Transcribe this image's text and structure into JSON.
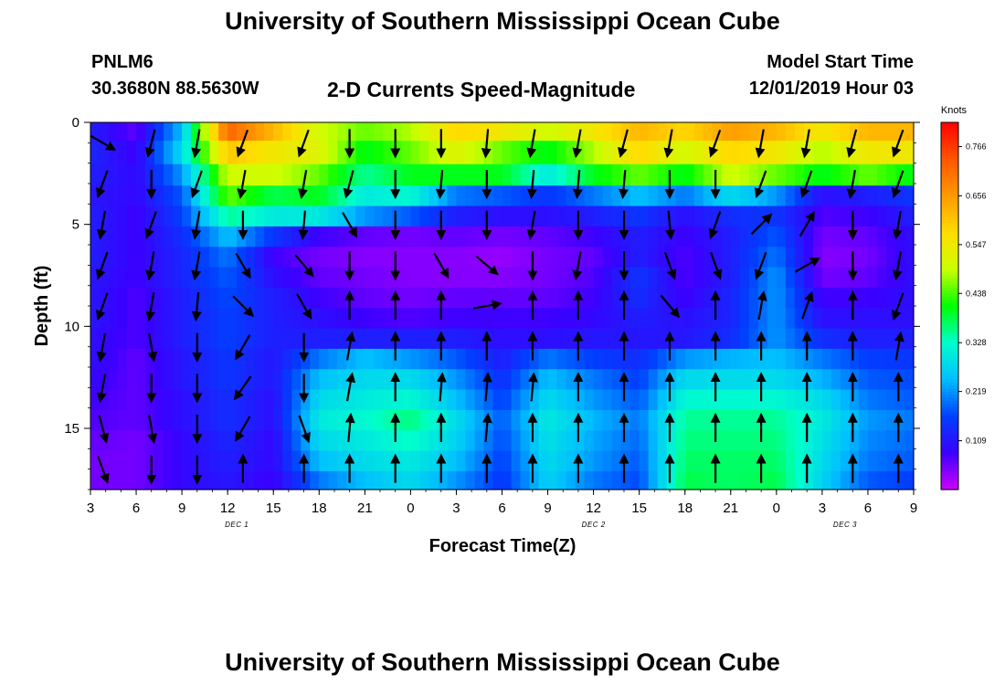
{
  "page": {
    "title_top": "University of Southern Mississippi Ocean Cube",
    "title_bottom": "University of Southern Mississippi Ocean Cube",
    "station_id": "PNLM6",
    "station_coords": "30.3680N 88.5630W",
    "plot_title": "2-D Currents Speed-Magnitude",
    "model_label": "Model Start Time",
    "model_time": "12/01/2019 Hour 03"
  },
  "chart_data": {
    "type": "heatmap",
    "title": "2-D Currents Speed-Magnitude",
    "xlabel": "Forecast Time(Z)",
    "ylabel": "Depth (ft)",
    "x_ticks": [
      "3",
      "6",
      "9",
      "12",
      "15",
      "18",
      "21",
      "0",
      "3",
      "6",
      "9",
      "12",
      "15",
      "18",
      "21",
      "0",
      "3",
      "6",
      "9"
    ],
    "y_ticks": [
      "0",
      "5",
      "10",
      "15"
    ],
    "y_tick_values": [
      0,
      5,
      10,
      15
    ],
    "ylim": [
      0,
      18
    ],
    "x_hours_range": [
      0,
      54
    ],
    "date_labels": [
      {
        "text": "DEC 1",
        "hour": 9.6
      },
      {
        "text": "DEC 2",
        "hour": 33.0
      },
      {
        "text": "DEC 3",
        "hour": 49.5
      }
    ],
    "colorbar": {
      "title": "Knots",
      "ticks": [
        "0.766",
        "0.656",
        "0.547",
        "0.438",
        "0.328",
        "0.219",
        "0.109"
      ],
      "tick_values": [
        0.766,
        0.656,
        0.547,
        0.438,
        0.328,
        0.219,
        0.109
      ],
      "range": [
        0,
        0.82
      ],
      "stops": [
        "#cc00ff",
        "#3a00ff",
        "#0040ff",
        "#00bfff",
        "#00ffcc",
        "#00ff00",
        "#ccff00",
        "#ffdd00",
        "#ff9900",
        "#ff5500",
        "#ff0000"
      ]
    },
    "depth_levels_ft": [
      0.3,
      1.5,
      2.6,
      3.6,
      4.6,
      5.6,
      6.6,
      7.6,
      8.6,
      9.6,
      10.6,
      11.6,
      12.6,
      13.6,
      14.6,
      15.6,
      16.6,
      17.6
    ],
    "speed_columns_hours": [
      0,
      3,
      6,
      9,
      12,
      15,
      18,
      21,
      24,
      27,
      30,
      33,
      36,
      39,
      42,
      45,
      48,
      51,
      54
    ],
    "speed_columns_knots": [
      [
        0.12,
        0.13,
        0.12,
        0.11,
        0.12,
        0.12,
        0.12,
        0.11,
        0.11,
        0.11,
        0.1,
        0.1,
        0.09,
        0.08,
        0.07,
        0.06,
        0.05,
        0.05
      ],
      [
        0.06,
        0.08,
        0.09,
        0.09,
        0.08,
        0.08,
        0.08,
        0.08,
        0.07,
        0.07,
        0.07,
        0.06,
        0.06,
        0.06,
        0.06,
        0.05,
        0.05,
        0.05
      ],
      [
        0.25,
        0.28,
        0.22,
        0.18,
        0.16,
        0.14,
        0.13,
        0.13,
        0.12,
        0.12,
        0.12,
        0.11,
        0.11,
        0.1,
        0.1,
        0.09,
        0.09,
        0.09
      ],
      [
        0.72,
        0.6,
        0.5,
        0.45,
        0.35,
        0.25,
        0.2,
        0.18,
        0.17,
        0.16,
        0.16,
        0.15,
        0.15,
        0.14,
        0.14,
        0.13,
        0.12,
        0.11
      ],
      [
        0.62,
        0.55,
        0.5,
        0.38,
        0.3,
        0.15,
        0.08,
        0.1,
        0.12,
        0.12,
        0.12,
        0.11,
        0.11,
        0.1,
        0.1,
        0.09,
        0.09,
        0.08
      ],
      [
        0.5,
        0.52,
        0.45,
        0.4,
        0.3,
        0.08,
        0.05,
        0.06,
        0.08,
        0.1,
        0.12,
        0.2,
        0.25,
        0.28,
        0.3,
        0.28,
        0.25,
        0.2
      ],
      [
        0.45,
        0.4,
        0.35,
        0.3,
        0.22,
        0.06,
        0.04,
        0.05,
        0.06,
        0.08,
        0.12,
        0.25,
        0.28,
        0.3,
        0.32,
        0.3,
        0.28,
        0.25
      ],
      [
        0.48,
        0.45,
        0.4,
        0.32,
        0.18,
        0.05,
        0.04,
        0.04,
        0.05,
        0.07,
        0.12,
        0.22,
        0.28,
        0.32,
        0.36,
        0.33,
        0.3,
        0.28
      ],
      [
        0.58,
        0.52,
        0.4,
        0.2,
        0.12,
        0.06,
        0.04,
        0.04,
        0.06,
        0.08,
        0.12,
        0.18,
        0.22,
        0.25,
        0.28,
        0.27,
        0.25,
        0.22
      ],
      [
        0.55,
        0.45,
        0.4,
        0.18,
        0.1,
        0.05,
        0.03,
        0.04,
        0.06,
        0.08,
        0.1,
        0.12,
        0.14,
        0.16,
        0.18,
        0.17,
        0.16,
        0.15
      ],
      [
        0.5,
        0.4,
        0.3,
        0.15,
        0.1,
        0.06,
        0.05,
        0.05,
        0.06,
        0.08,
        0.1,
        0.2,
        0.25,
        0.28,
        0.3,
        0.29,
        0.28,
        0.27
      ],
      [
        0.55,
        0.48,
        0.4,
        0.2,
        0.12,
        0.08,
        0.06,
        0.07,
        0.08,
        0.09,
        0.11,
        0.16,
        0.2,
        0.22,
        0.24,
        0.23,
        0.22,
        0.2
      ],
      [
        0.62,
        0.58,
        0.45,
        0.25,
        0.15,
        0.12,
        0.12,
        0.15,
        0.14,
        0.12,
        0.11,
        0.14,
        0.16,
        0.18,
        0.2,
        0.19,
        0.18,
        0.17
      ],
      [
        0.58,
        0.5,
        0.4,
        0.2,
        0.1,
        0.08,
        0.07,
        0.07,
        0.08,
        0.1,
        0.11,
        0.22,
        0.28,
        0.32,
        0.35,
        0.36,
        0.37,
        0.38
      ],
      [
        0.65,
        0.58,
        0.5,
        0.28,
        0.14,
        0.12,
        0.12,
        0.12,
        0.13,
        0.13,
        0.14,
        0.24,
        0.28,
        0.32,
        0.35,
        0.36,
        0.37,
        0.37
      ],
      [
        0.62,
        0.55,
        0.45,
        0.22,
        0.15,
        0.18,
        0.2,
        0.22,
        0.22,
        0.22,
        0.22,
        0.25,
        0.28,
        0.32,
        0.35,
        0.36,
        0.37,
        0.38
      ],
      [
        0.55,
        0.48,
        0.4,
        0.1,
        0.07,
        0.05,
        0.04,
        0.05,
        0.08,
        0.1,
        0.14,
        0.2,
        0.24,
        0.28,
        0.3,
        0.29,
        0.28,
        0.27
      ],
      [
        0.62,
        0.55,
        0.45,
        0.12,
        0.08,
        0.06,
        0.05,
        0.06,
        0.08,
        0.1,
        0.12,
        0.16,
        0.18,
        0.2,
        0.22,
        0.21,
        0.2,
        0.18
      ],
      [
        0.62,
        0.55,
        0.4,
        0.15,
        0.12,
        0.1,
        0.1,
        0.1,
        0.1,
        0.1,
        0.12,
        0.15,
        0.17,
        0.18,
        0.2,
        0.19,
        0.18,
        0.16
      ]
    ],
    "arrow_columns_hours": [
      0.8,
      4,
      7,
      10,
      14,
      17,
      20,
      23,
      26,
      29,
      32,
      35,
      38,
      41,
      44,
      47,
      50,
      53
    ],
    "arrow_rows_depth_ft": [
      1,
      3,
      5,
      7,
      9,
      11,
      13,
      15,
      17
    ],
    "arrow_direction_deg_from_north": [
      [
        120,
        195,
        190,
        200,
        200,
        180,
        180,
        180,
        185,
        190,
        190,
        195,
        190,
        200,
        190,
        190,
        195,
        200
      ],
      [
        200,
        180,
        200,
        190,
        190,
        195,
        180,
        185,
        180,
        185,
        185,
        185,
        180,
        180,
        200,
        200,
        190,
        200
      ],
      [
        190,
        200,
        190,
        180,
        185,
        150,
        180,
        180,
        180,
        190,
        180,
        180,
        175,
        200,
        45,
        30,
        180,
        190
      ],
      [
        200,
        190,
        190,
        150,
        140,
        180,
        180,
        150,
        130,
        180,
        190,
        180,
        160,
        160,
        200,
        60,
        180,
        190
      ],
      [
        200,
        190,
        185,
        135,
        150,
        0,
        0,
        0,
        80,
        0,
        0,
        0,
        140,
        0,
        10,
        20,
        0,
        200
      ],
      [
        190,
        170,
        180,
        210,
        180,
        10,
        0,
        0,
        0,
        0,
        0,
        0,
        0,
        0,
        0,
        0,
        0,
        10
      ],
      [
        190,
        180,
        180,
        215,
        180,
        10,
        0,
        5,
        5,
        5,
        0,
        0,
        0,
        0,
        0,
        0,
        0,
        0
      ],
      [
        165,
        170,
        180,
        210,
        160,
        5,
        0,
        0,
        5,
        0,
        0,
        0,
        0,
        0,
        0,
        0,
        0,
        0
      ],
      [
        160,
        180,
        180,
        0,
        0,
        0,
        0,
        0,
        0,
        0,
        0,
        0,
        0,
        0,
        0,
        0,
        0,
        0
      ]
    ]
  }
}
